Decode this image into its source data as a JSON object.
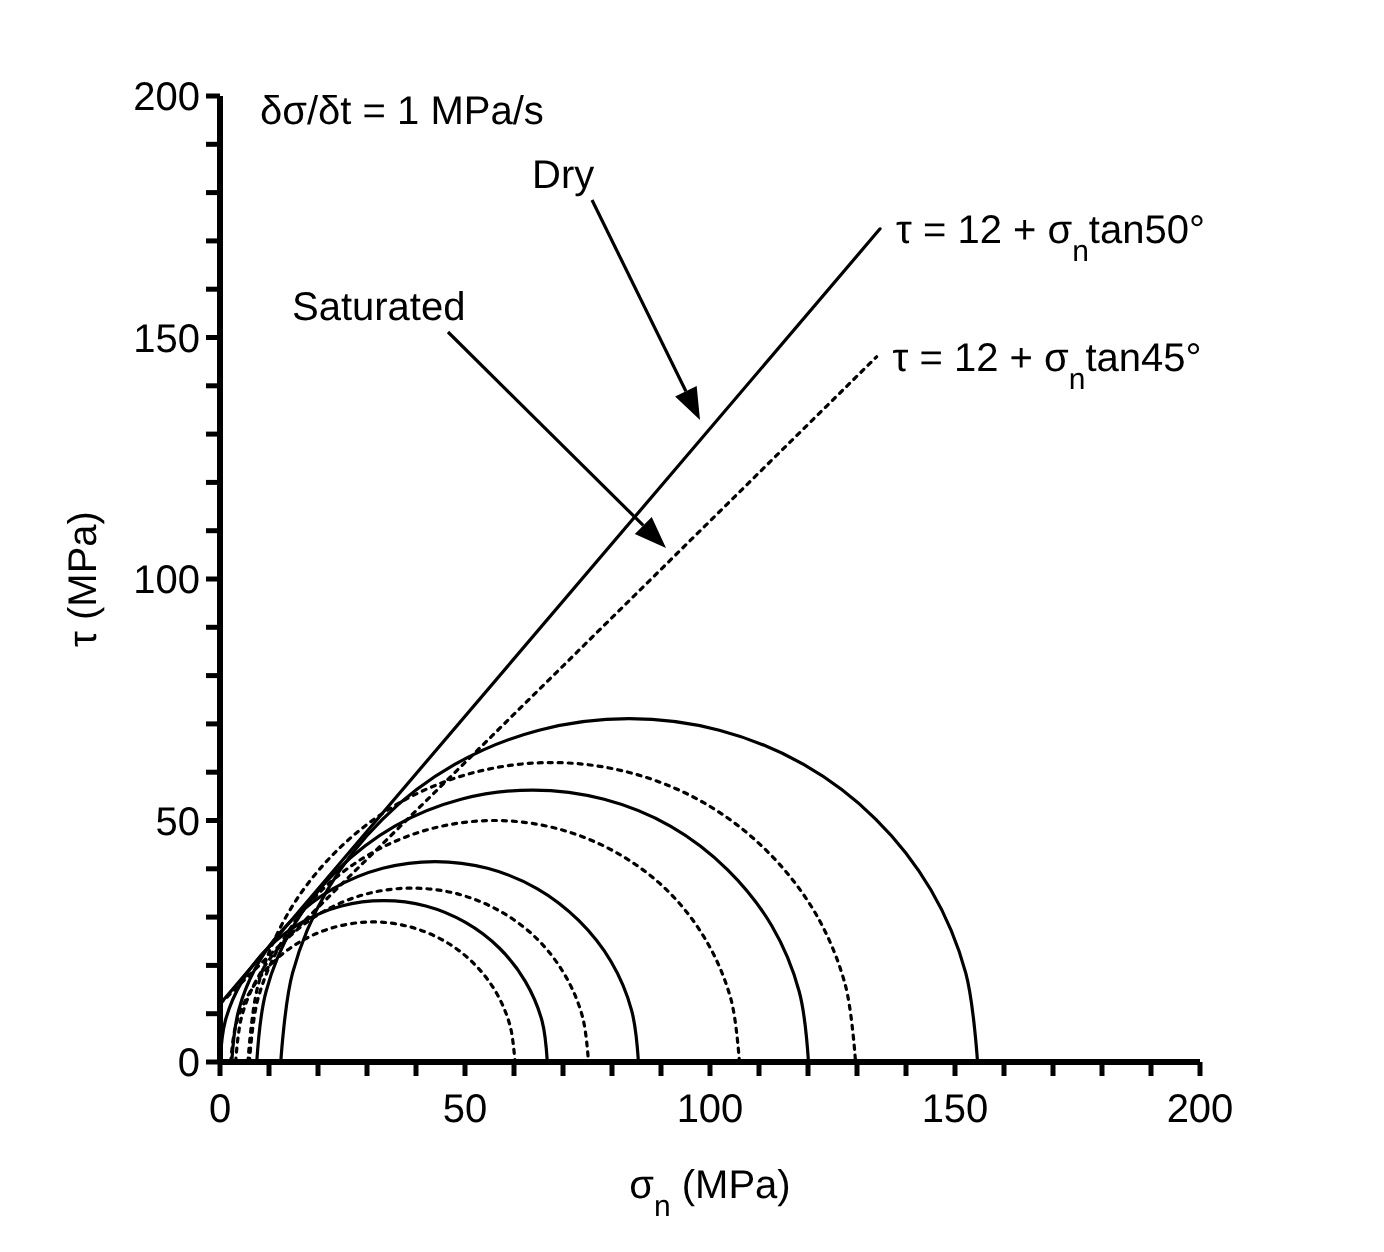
{
  "chart_data": {
    "type": "line",
    "xlabel": "σ$_{n}$ (MPa)",
    "ylabel": "τ (MPa)",
    "xlim": [
      0,
      200
    ],
    "ylim": [
      0,
      200
    ],
    "xticks": [
      0,
      {
        "value": 10,
        "label": null
      },
      {
        "value": 20,
        "label": null
      },
      {
        "value": 30,
        "label": null
      },
      {
        "value": 40,
        "label": null
      },
      50,
      {
        "value": 60,
        "label": null
      },
      {
        "value": 70,
        "label": null
      },
      {
        "value": 80,
        "label": null
      },
      {
        "value": 90,
        "label": null
      },
      100,
      {
        "value": 110,
        "label": null
      },
      {
        "value": 120,
        "label": null
      },
      {
        "value": 130,
        "label": null
      },
      {
        "value": 140,
        "label": null
      },
      150,
      {
        "value": 160,
        "label": null
      },
      {
        "value": 170,
        "label": null
      },
      {
        "value": 180,
        "label": null
      },
      {
        "value": 190,
        "label": null
      },
      200
    ],
    "yticks": [
      0,
      {
        "value": 10,
        "label": null
      },
      {
        "value": 20,
        "label": null
      },
      {
        "value": 30,
        "label": null
      },
      {
        "value": 40,
        "label": null
      },
      50,
      {
        "value": 60,
        "label": null
      },
      {
        "value": 70,
        "label": null
      },
      {
        "value": 80,
        "label": null
      },
      {
        "value": 90,
        "label": null
      },
      100,
      {
        "value": 110,
        "label": null
      },
      {
        "value": 120,
        "label": null
      },
      {
        "value": 130,
        "label": null
      },
      {
        "value": 140,
        "label": null
      },
      150,
      {
        "value": 160,
        "label": null
      },
      {
        "value": 170,
        "label": null
      },
      {
        "value": 180,
        "label": null
      },
      {
        "value": 190,
        "label": null
      },
      200
    ],
    "grid": false,
    "marker": "none",
    "annotations": [
      "δσ/δt = 1 MPa/s",
      "Dry",
      "Saturated"
    ],
    "series": [
      {
        "name": "τ = 12 + σ$_{n}$tan50°",
        "color": "#000000",
        "line_style": "solid",
        "x": [
          0,
          134.7
        ],
        "values": [
          12,
          172.5
        ]
      },
      {
        "name": "τ = 12 + σ$_{n}$tan45°",
        "color": "#000000",
        "line_style": "dotted",
        "x": [
          0,
          134
        ],
        "values": [
          12,
          146
        ]
      },
      {
        "color": "#000000",
        "line_style": "solid",
        "x": [
          12.4,
          14.8,
          21.9,
          33.2,
          47.9,
          65.1,
          83.5,
          101.9,
          119.1,
          133.8,
          145.1,
          152.2,
          154.6
        ],
        "values": [
          0,
          18.4,
          35.6,
          50.3,
          61.6,
          68.7,
          71.1,
          68.7,
          61.6,
          50.3,
          35.6,
          18.4,
          0
        ]
      },
      {
        "color": "#000000",
        "line_style": "solid",
        "x": [
          7.5,
          9.4,
          15.0,
          24.0,
          35.6,
          49.2,
          63.8,
          78.4,
          92.0,
          103.6,
          112.6,
          118.2,
          120.1
        ],
        "values": [
          0,
          14.6,
          28.2,
          39.8,
          48.8,
          54.4,
          56.3,
          54.4,
          48.8,
          39.8,
          28.2,
          14.6,
          0
        ]
      },
      {
        "color": "#000000",
        "line_style": "solid",
        "x": [
          2.4,
          3.8,
          8.0,
          14.6,
          23.1,
          33.2,
          43.9,
          54.6,
          64.7,
          73.2,
          79.8,
          84.0,
          85.4
        ],
        "values": [
          0,
          10.7,
          20.8,
          29.3,
          35.9,
          40.1,
          41.5,
          40.1,
          35.9,
          29.3,
          20.8,
          10.7,
          0
        ]
      },
      {
        "color": "#000000",
        "line_style": "solid",
        "x": [
          0,
          1.1,
          4.5,
          9.8,
          16.7,
          24.8,
          33.4,
          42.0,
          50.1,
          57.0,
          62.3,
          65.7,
          66.8
        ],
        "values": [
          0,
          8.6,
          16.7,
          23.6,
          28.9,
          32.3,
          33.4,
          32.3,
          28.9,
          23.6,
          16.7,
          8.6,
          0
        ]
      },
      {
        "color": "#000000",
        "line_style": "dotted",
        "x": [
          5.7,
          7.8,
          14.0,
          23.9,
          36.7,
          51.7,
          67.7,
          83.7,
          98.7,
          111.5,
          121.4,
          127.6,
          129.7
        ],
        "values": [
          0,
          16,
          31,
          43.8,
          53.7,
          59.9,
          62,
          59.9,
          53.7,
          43.8,
          31,
          16,
          0
        ]
      },
      {
        "color": "#000000",
        "line_style": "dotted",
        "x": [
          6,
          7.7,
          12.7,
          20.6,
          31,
          43.1,
          56,
          68.9,
          81,
          91.4,
          99.3,
          104.3,
          106
        ],
        "values": [
          0,
          12.9,
          25,
          35.4,
          43.3,
          48.3,
          50,
          48.3,
          43.3,
          35.4,
          25,
          12.9,
          0
        ]
      },
      {
        "color": "#000000",
        "line_style": "dotted",
        "x": [
          3.2,
          4.4,
          8.0,
          13.7,
          21.2,
          29.9,
          39.2,
          48.5,
          57.2,
          64.7,
          70.4,
          74.0,
          75.2
        ],
        "values": [
          0,
          9.3,
          18,
          25.5,
          31.2,
          34.8,
          36,
          34.8,
          31.2,
          25.5,
          18,
          9.3,
          0
        ]
      },
      {
        "color": "#000000",
        "line_style": "dotted",
        "x": [
          2.2,
          3.2,
          6.1,
          10.7,
          16.7,
          23.7,
          31.2,
          38.7,
          45.7,
          51.7,
          56.3,
          59.2,
          60.2
        ],
        "values": [
          0,
          7.5,
          14.5,
          20.5,
          25.1,
          28,
          29,
          28,
          25.1,
          20.5,
          14.5,
          7.5,
          0
        ]
      }
    ]
  }
}
